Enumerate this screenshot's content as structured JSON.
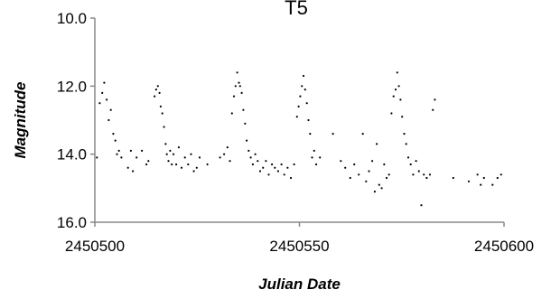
{
  "chart_data": {
    "type": "scatter",
    "title": "T5",
    "xlabel": "Julian Date",
    "ylabel": "Magnitude",
    "xlim": [
      2450500,
      2450600
    ],
    "ylim": [
      10.0,
      16.0
    ],
    "y_inverted": true,
    "grid": false,
    "xticks": [
      "2450500",
      "2450550",
      "2450600"
    ],
    "yticks": [
      "10.0",
      "12.0",
      "14.0",
      "16.0"
    ],
    "marker_color": "#000000",
    "series": [
      {
        "points": [
          [
            2450500.5,
            14.1
          ],
          [
            2450501.2,
            12.5
          ],
          [
            2450501.8,
            12.2
          ],
          [
            2450502.3,
            11.9
          ],
          [
            2450502.9,
            12.4
          ],
          [
            2450503.4,
            13.0
          ],
          [
            2450503.9,
            12.7
          ],
          [
            2450504.5,
            13.4
          ],
          [
            2450505.0,
            13.6
          ],
          [
            2450505.4,
            14.0
          ],
          [
            2450505.9,
            13.9
          ],
          [
            2450506.5,
            14.1
          ],
          [
            2450508.1,
            14.4
          ],
          [
            2450508.8,
            13.9
          ],
          [
            2450509.3,
            14.5
          ],
          [
            2450510.2,
            14.1
          ],
          [
            2450511.5,
            13.9
          ],
          [
            2450512.6,
            14.3
          ],
          [
            2450513.1,
            14.2
          ],
          [
            2450514.6,
            12.3
          ],
          [
            2450515.0,
            12.1
          ],
          [
            2450515.4,
            12.0
          ],
          [
            2450515.8,
            12.2
          ],
          [
            2450516.1,
            12.6
          ],
          [
            2450516.5,
            12.8
          ],
          [
            2450516.9,
            13.2
          ],
          [
            2450517.3,
            13.7
          ],
          [
            2450517.6,
            14.0
          ],
          [
            2450518.0,
            14.2
          ],
          [
            2450518.4,
            13.9
          ],
          [
            2450518.8,
            14.3
          ],
          [
            2450519.2,
            14.0
          ],
          [
            2450519.9,
            14.3
          ],
          [
            2450520.5,
            13.8
          ],
          [
            2450521.2,
            14.4
          ],
          [
            2450522.0,
            14.1
          ],
          [
            2450522.8,
            14.3
          ],
          [
            2450523.5,
            14.0
          ],
          [
            2450524.2,
            14.5
          ],
          [
            2450524.9,
            14.4
          ],
          [
            2450525.6,
            14.1
          ],
          [
            2450527.5,
            14.3
          ],
          [
            2450530.6,
            14.1
          ],
          [
            2450531.6,
            14.0
          ],
          [
            2450532.4,
            13.8
          ],
          [
            2450533.0,
            14.2
          ],
          [
            2450533.5,
            12.8
          ],
          [
            2450534.0,
            12.3
          ],
          [
            2450534.4,
            12.0
          ],
          [
            2450534.8,
            11.6
          ],
          [
            2450535.2,
            11.9
          ],
          [
            2450535.5,
            12.0
          ],
          [
            2450535.9,
            12.2
          ],
          [
            2450536.3,
            12.7
          ],
          [
            2450536.7,
            13.1
          ],
          [
            2450537.1,
            13.6
          ],
          [
            2450537.6,
            13.9
          ],
          [
            2450538.1,
            14.1
          ],
          [
            2450538.6,
            14.3
          ],
          [
            2450539.2,
            14.0
          ],
          [
            2450539.8,
            14.2
          ],
          [
            2450540.4,
            14.5
          ],
          [
            2450541.1,
            14.4
          ],
          [
            2450541.8,
            14.2
          ],
          [
            2450542.5,
            14.6
          ],
          [
            2450543.3,
            14.3
          ],
          [
            2450544.0,
            14.4
          ],
          [
            2450544.8,
            14.5
          ],
          [
            2450545.6,
            14.3
          ],
          [
            2450546.3,
            14.6
          ],
          [
            2450547.1,
            14.4
          ],
          [
            2450547.9,
            14.7
          ],
          [
            2450548.7,
            14.3
          ],
          [
            2450549.4,
            12.9
          ],
          [
            2450549.8,
            12.6
          ],
          [
            2450550.2,
            12.3
          ],
          [
            2450550.6,
            12.0
          ],
          [
            2450551.0,
            11.7
          ],
          [
            2450551.4,
            12.1
          ],
          [
            2450551.8,
            12.5
          ],
          [
            2450552.2,
            13.0
          ],
          [
            2450552.6,
            13.4
          ],
          [
            2450553.1,
            14.1
          ],
          [
            2450553.6,
            13.9
          ],
          [
            2450554.1,
            14.3
          ],
          [
            2450555.0,
            14.1
          ],
          [
            2450558.2,
            13.4
          ],
          [
            2450560.1,
            14.2
          ],
          [
            2450561.2,
            14.4
          ],
          [
            2450562.4,
            14.7
          ],
          [
            2450563.4,
            14.3
          ],
          [
            2450564.5,
            14.6
          ],
          [
            2450565.5,
            13.4
          ],
          [
            2450566.3,
            14.8
          ],
          [
            2450567.0,
            14.5
          ],
          [
            2450567.8,
            14.2
          ],
          [
            2450568.4,
            15.1
          ],
          [
            2450568.9,
            13.7
          ],
          [
            2450569.5,
            14.9
          ],
          [
            2450570.1,
            15.0
          ],
          [
            2450570.7,
            14.3
          ],
          [
            2450571.3,
            14.7
          ],
          [
            2450571.9,
            14.6
          ],
          [
            2450572.5,
            12.8
          ],
          [
            2450573.0,
            12.3
          ],
          [
            2450573.5,
            12.1
          ],
          [
            2450573.9,
            11.6
          ],
          [
            2450574.3,
            12.0
          ],
          [
            2450574.7,
            12.4
          ],
          [
            2450575.1,
            12.9
          ],
          [
            2450575.6,
            13.4
          ],
          [
            2450576.1,
            13.7
          ],
          [
            2450576.6,
            14.1
          ],
          [
            2450577.2,
            14.3
          ],
          [
            2450577.8,
            14.6
          ],
          [
            2450578.5,
            14.2
          ],
          [
            2450579.2,
            14.5
          ],
          [
            2450579.8,
            15.5
          ],
          [
            2450580.4,
            14.6
          ],
          [
            2450581.1,
            14.7
          ],
          [
            2450581.9,
            14.6
          ],
          [
            2450582.6,
            12.7
          ],
          [
            2450583.1,
            12.4
          ],
          [
            2450587.6,
            14.7
          ],
          [
            2450591.4,
            14.8
          ],
          [
            2450593.5,
            14.6
          ],
          [
            2450594.3,
            14.9
          ],
          [
            2450595.1,
            14.7
          ],
          [
            2450597.2,
            14.9
          ],
          [
            2450598.4,
            14.7
          ],
          [
            2450599.3,
            14.6
          ]
        ]
      }
    ]
  }
}
